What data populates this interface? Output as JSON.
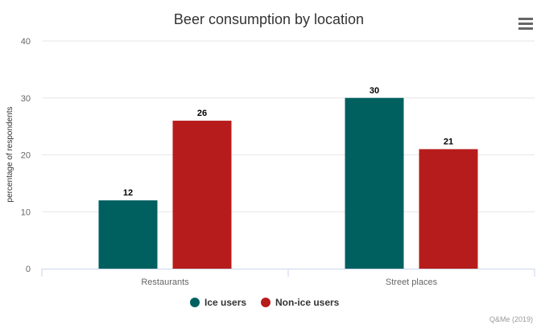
{
  "chart_data": {
    "type": "bar",
    "title": "Beer consumption by location",
    "xlabel": "",
    "ylabel": "percentage of respondents",
    "categories": [
      "Restaurants",
      "Street places"
    ],
    "series": [
      {
        "name": "Ice users",
        "values": [
          12,
          30
        ],
        "color": "#006060"
      },
      {
        "name": "Non-ice users",
        "values": [
          26,
          21
        ],
        "color": "#b71c1c"
      }
    ],
    "ylim": [
      0,
      40
    ],
    "yticks": [
      0,
      10,
      20,
      30,
      40
    ],
    "grid": true,
    "legend_position": "bottom-center",
    "data_labels": true
  },
  "credits": "Q&Me (2019)",
  "menu_icon": "hamburger-menu-icon",
  "colors": {
    "axis_text": "#666666",
    "grid": "#e6e6e6",
    "axis_line": "#ccd6eb",
    "title": "#333333"
  }
}
